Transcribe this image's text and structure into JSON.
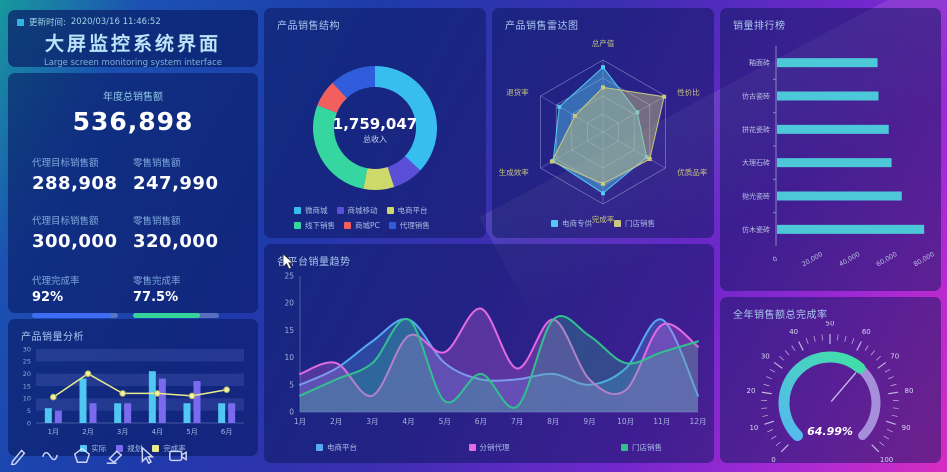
{
  "header": {
    "update_label": "更新时间:",
    "update_time": "2020/03/16 11:46:52",
    "title": "大屏监控系统界面",
    "subtitle": "Large screen monitoring system interface"
  },
  "stats": {
    "total": {
      "label": "年度总销售额",
      "value": "536,898"
    },
    "pairs": [
      {
        "left_label": "代理目标销售额",
        "left_value": "288,908",
        "right_label": "零售销售额",
        "right_value": "247,990"
      },
      {
        "left_label": "代理目标销售额",
        "left_value": "300,000",
        "right_label": "零售销售额",
        "right_value": "320,000"
      }
    ],
    "progress": [
      {
        "label": "代理完成率",
        "value": "92%",
        "pct": 92,
        "color": "#3f6cf5"
      },
      {
        "label": "零售完成率",
        "value": "77.5%",
        "pct": 77.5,
        "color": "#35d49a"
      }
    ]
  },
  "chart_data": {
    "product_sales_analysis": {
      "type": "bar+line",
      "title": "产品销量分析",
      "categories": [
        "1月",
        "2月",
        "3月",
        "4月",
        "5月",
        "6月"
      ],
      "ylim": [
        0,
        30
      ],
      "yticks": [
        0,
        5,
        10,
        15,
        20,
        25,
        30
      ],
      "series": [
        {
          "name": "实际",
          "type": "bar",
          "color": "#50c7f2",
          "values": [
            6,
            18,
            8,
            21,
            8,
            8
          ]
        },
        {
          "name": "规划",
          "type": "bar",
          "color": "#7a6bee",
          "values": [
            5,
            8,
            8,
            18,
            17,
            8
          ]
        },
        {
          "name": "完成率",
          "type": "line",
          "color": "#e9eb8b",
          "values": [
            10.5,
            20,
            12,
            12,
            11,
            13.5
          ]
        }
      ]
    },
    "product_sales_structure": {
      "type": "pie",
      "title": "产品销售结构",
      "center_value": "1,759,047",
      "center_label": "总收入",
      "slices": [
        {
          "name": "微商城",
          "pct": 37,
          "color": "#38bdef"
        },
        {
          "name": "商城移动",
          "pct": 8,
          "color": "#5b4fd8"
        },
        {
          "name": "电商平台",
          "pct": 8,
          "color": "#cdd96b"
        },
        {
          "name": "线下销售",
          "pct": 28,
          "color": "#36d6a0"
        },
        {
          "name": "商城PC",
          "pct": 7,
          "color": "#f25f5f"
        },
        {
          "name": "代理销售",
          "pct": 12,
          "color": "#2f5ddb"
        }
      ]
    },
    "product_sales_radar": {
      "type": "radar",
      "title": "产品销售雷达图",
      "indicators": [
        "总产值",
        "性价比",
        "优质品率",
        "完成率",
        "生成效率",
        "退货率"
      ],
      "max": 100,
      "series": [
        {
          "name": "电商专供",
          "color": "#53c8f0",
          "values": [
            90,
            55,
            70,
            85,
            80,
            70
          ]
        },
        {
          "name": "门店销售",
          "color": "#c9c87e",
          "values": [
            62,
            98,
            75,
            72,
            82,
            45
          ]
        }
      ]
    },
    "sales_ranking": {
      "type": "bar",
      "orientation": "horizontal",
      "title": "销量排行榜",
      "categories": [
        "釉面砖",
        "仿古瓷砖",
        "拼花瓷砖",
        "大理石砖",
        "抛光瓷砖",
        "仿木瓷砖"
      ],
      "values": [
        54000,
        54500,
        60000,
        61500,
        67000,
        79000
      ],
      "color": "#4cc8d9",
      "xlim": [
        0,
        80000
      ],
      "xticks": [
        {
          "v": 0,
          "label": "0"
        },
        {
          "v": 20000,
          "label": "20,000"
        },
        {
          "v": 40000,
          "label": "40,000"
        },
        {
          "v": 60000,
          "label": "60,000"
        },
        {
          "v": 80000,
          "label": "80,000"
        }
      ]
    },
    "platform_sales_trend": {
      "type": "line",
      "title": "各平台销量趋势",
      "categories": [
        "1月",
        "2月",
        "3月",
        "4月",
        "5月",
        "6月",
        "7月",
        "8月",
        "9月",
        "10月",
        "11月",
        "12月"
      ],
      "ylim": [
        0,
        25
      ],
      "yticks": [
        0,
        5,
        10,
        15,
        20,
        25
      ],
      "series": [
        {
          "name": "电商平台",
          "color": "#55aaf3",
          "values": [
            5,
            8,
            13,
            17,
            9,
            6,
            6,
            7,
            5,
            8,
            17,
            3
          ]
        },
        {
          "name": "分销代理",
          "color": "#e26ae2",
          "values": [
            7,
            9,
            3,
            14,
            11,
            19,
            8,
            17,
            6,
            4,
            16,
            12
          ]
        },
        {
          "name": "门店销售",
          "color": "#31c08e",
          "values": [
            3,
            6,
            9,
            17,
            2,
            7,
            1,
            17,
            14,
            9,
            11,
            13
          ]
        }
      ]
    },
    "annual_completion_gauge": {
      "type": "gauge",
      "title": "全年销售额总完成率",
      "value": 64.99,
      "display": "64.99%",
      "min": 0,
      "max": 100,
      "tick_labels": [
        "0",
        "10",
        "20",
        "30",
        "40",
        "50",
        "60",
        "70",
        "80",
        "90",
        "100"
      ],
      "progress_colors": [
        "#55b9f0",
        "#40e0a5"
      ],
      "track_color": "#b2a2e6"
    }
  },
  "toolbar": {
    "icons": [
      "pen-icon",
      "wave-icon",
      "shape-icon",
      "eraser-icon",
      "cursor-icon",
      "camera-icon"
    ]
  }
}
